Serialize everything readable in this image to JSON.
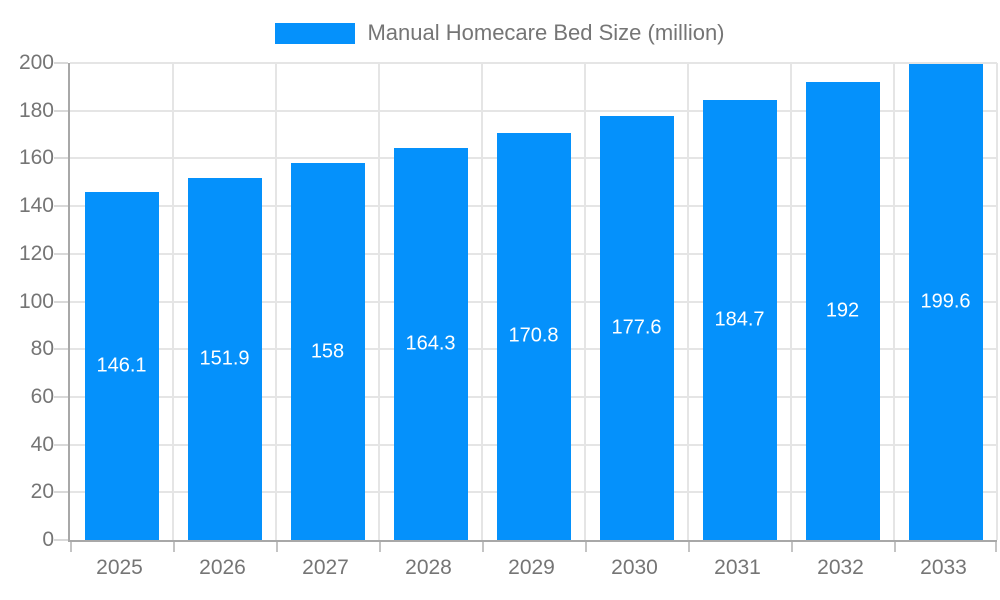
{
  "chart_data": {
    "type": "bar",
    "title": "Manual Homecare Bed Size (million)",
    "categories": [
      "2025",
      "2026",
      "2027",
      "2028",
      "2029",
      "2030",
      "2031",
      "2032",
      "2033"
    ],
    "values": [
      146.1,
      151.9,
      158,
      164.3,
      170.8,
      177.6,
      184.7,
      192,
      199.6
    ],
    "series_name": "Manual Homecare Bed Size (million)",
    "xlabel": "",
    "ylabel": "",
    "ylim": [
      0,
      200
    ],
    "ytick_step": 20,
    "grid": true,
    "legend_position": "top-center",
    "colors": {
      "bar": "#0591fb",
      "bar_label_text": "#ffffff",
      "axis_text": "#757575",
      "gridline": "#e5e5e5",
      "axis_line": "#a8a8a8"
    }
  }
}
